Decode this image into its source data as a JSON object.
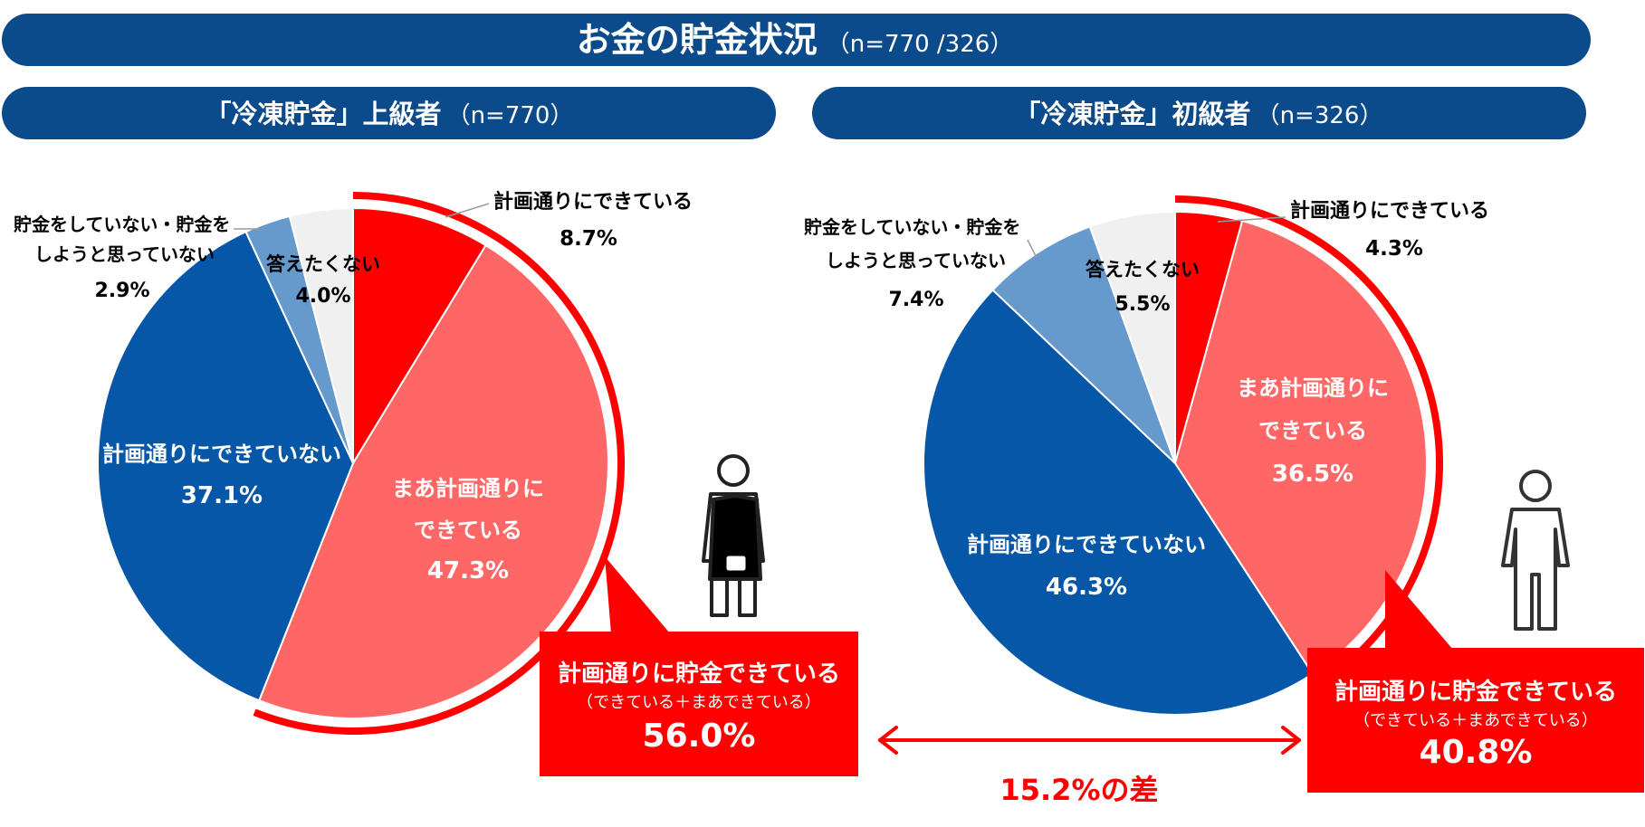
{
  "title": {
    "main": "お金の貯金状況",
    "sub": "（n=770 /326）"
  },
  "colors": {
    "banner": "#0B4A8B",
    "red": "#FF0000",
    "light_red": "#FF6666",
    "blue": "#0757A8",
    "light_blue": "#6699CC",
    "gray": "#F0F0F0",
    "text": "#000000"
  },
  "icons": [
    "woman-apron-icon",
    "man-person-icon"
  ],
  "chart_data": [
    {
      "type": "pie",
      "title": "「冷凍貯金」上級者",
      "n_label": "（n=770）",
      "slices": [
        {
          "label": "計画通りにできている",
          "value": 8.7,
          "value_label": "8.7%",
          "color": "#FF0000"
        },
        {
          "label": "まあ計画通りにできている",
          "value": 47.3,
          "value_label": "47.3%",
          "color": "#FF6666"
        },
        {
          "label": "計画通りにできていない",
          "value": 37.1,
          "value_label": "37.1%",
          "color": "#0757A8"
        },
        {
          "label": "貯金をしていない・貯金をしようと思っていない",
          "value": 2.9,
          "value_label": "2.9%",
          "color": "#6699CC"
        },
        {
          "label": "答えたくない",
          "value": 4.0,
          "value_label": "4.0%",
          "color": "#F0F0F0"
        }
      ],
      "callout": {
        "title": "計画通りに貯金できている",
        "sub": "（できている＋まあできている）",
        "value": "56.0%"
      }
    },
    {
      "type": "pie",
      "title": "「冷凍貯金」初級者",
      "n_label": "（n=326）",
      "slices": [
        {
          "label": "計画通りにできている",
          "value": 4.3,
          "value_label": "4.3%",
          "color": "#FF0000"
        },
        {
          "label": "まあ計画通りにできている",
          "value": 36.5,
          "value_label": "36.5%",
          "color": "#FF6666"
        },
        {
          "label": "計画通りにできていない",
          "value": 46.3,
          "value_label": "46.3%",
          "color": "#0757A8"
        },
        {
          "label": "貯金をしていない・貯金をしようと思っていない",
          "value": 7.4,
          "value_label": "7.4%",
          "color": "#6699CC"
        },
        {
          "label": "答えたくない",
          "value": 5.5,
          "value_label": "5.5%",
          "color": "#F0F0F0"
        }
      ],
      "callout": {
        "title": "計画通りに貯金できている",
        "sub": "（できている＋まあできている）",
        "value": "40.8%"
      }
    }
  ],
  "labels": {
    "left": {
      "dekiteiru": "計画通りにできている",
      "dekiteiru_pct": "8.7%",
      "maa_line1": "まあ計画通りに",
      "maa_line2": "できている",
      "maa_pct": "47.3%",
      "dekinai": "計画通りにできていない",
      "dekinai_pct": "37.1%",
      "nochokin_line1": "貯金をしていない・貯金を",
      "nochokin_line2": "しようと思っていない",
      "nochokin_pct": "2.9%",
      "kotae": "答えたくない",
      "kotae_pct": "4.0%"
    },
    "right": {
      "dekiteiru": "計画通りにできている",
      "dekiteiru_pct": "4.3%",
      "maa_line1": "まあ計画通りに",
      "maa_line2": "できている",
      "maa_pct": "36.5%",
      "dekinai": "計画通りにできていない",
      "dekinai_pct": "46.3%",
      "nochokin_line1": "貯金をしていない・貯金を",
      "nochokin_line2": "しようと思っていない",
      "nochokin_pct": "7.4%",
      "kotae": "答えたくない",
      "kotae_pct": "5.5%"
    }
  },
  "difference": {
    "label": "15.2%の差"
  }
}
